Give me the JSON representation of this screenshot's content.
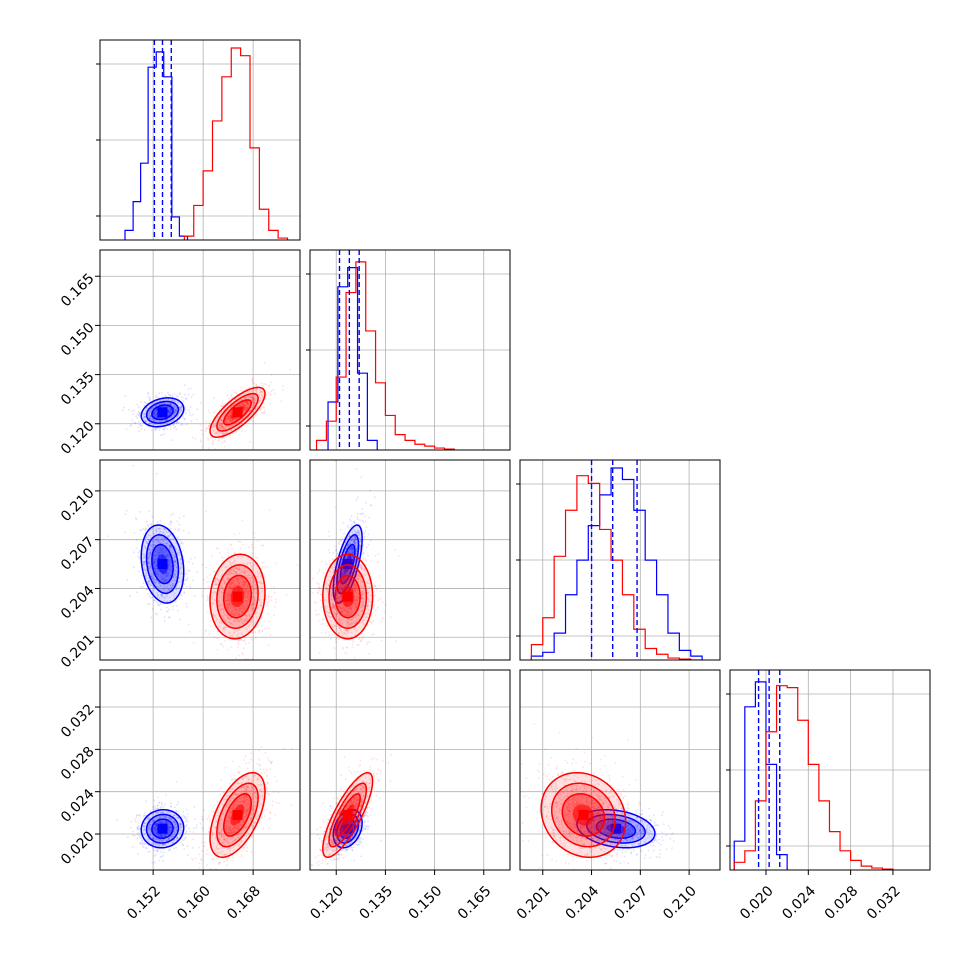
{
  "chart_data": {
    "type": "corner",
    "grid": true,
    "parameters": [
      {
        "ticks": [
          0.152,
          0.16,
          0.168
        ],
        "tick_labels": [
          "0.152",
          "0.160",
          "0.168"
        ],
        "range": [
          0.1435,
          0.1755
        ]
      },
      {
        "ticks": [
          0.12,
          0.135,
          0.15,
          0.165
        ],
        "tick_labels": [
          "0.120",
          "0.135",
          "0.150",
          "0.165"
        ],
        "range": [
          0.112,
          0.173
        ]
      },
      {
        "ticks": [
          0.201,
          0.204,
          0.207,
          0.21
        ],
        "tick_labels": [
          "0.201",
          "0.204",
          "0.207",
          "0.210"
        ],
        "range": [
          0.1996,
          0.2119
        ]
      },
      {
        "ticks": [
          0.02,
          0.024,
          0.028,
          0.032
        ],
        "tick_labels": [
          "0.020",
          "0.024",
          "0.028",
          "0.032"
        ],
        "range": [
          0.0166,
          0.0355
        ]
      }
    ],
    "series": [
      {
        "color": "#0000ff",
        "mean": [
          0.1535,
          0.1235,
          0.2055,
          0.0205
        ],
        "sd": [
          0.0017,
          0.0022,
          0.0012,
          0.0009
        ],
        "quantiles": [
          [
            0.1522,
            0.1535,
            0.1549
          ],
          [
            0.121,
            0.124,
            0.127
          ],
          [
            0.204,
            0.2053,
            0.2068
          ],
          [
            0.0193,
            0.0203,
            0.0213
          ]
        ],
        "histograms": [
          {
            "edges": [
              0.1475,
              0.1488,
              0.15,
              0.1512,
              0.1525,
              0.1537,
              0.155,
              0.1562,
              0.1575
            ],
            "counts": [
              0.05,
              0.2,
              0.4,
              0.9,
              0.98,
              0.85,
              0.12,
              0.02
            ]
          },
          {
            "edges": [
              0.1175,
              0.1205,
              0.1235,
              0.1265,
              0.1295,
              0.1325
            ],
            "counts": [
              0.25,
              0.85,
              0.95,
              0.4,
              0.05
            ]
          },
          {
            "edges": [
              0.2003,
              0.201,
              0.2017,
              0.2024,
              0.2031,
              0.2038,
              0.2045,
              0.2052,
              0.2059,
              0.2066,
              0.2073,
              0.208,
              0.2087,
              0.2094,
              0.2101,
              0.2108
            ],
            "counts": [
              0.02,
              0.04,
              0.14,
              0.34,
              0.52,
              0.7,
              0.86,
              1.0,
              0.94,
              0.78,
              0.52,
              0.34,
              0.14,
              0.05,
              0.02
            ]
          },
          {
            "edges": [
              0.017,
              0.018,
              0.019,
              0.02,
              0.021,
              0.022
            ],
            "counts": [
              0.15,
              0.85,
              0.98,
              0.55,
              0.08
            ]
          }
        ]
      },
      {
        "color": "#ff0000",
        "mean": [
          0.1655,
          0.1235,
          0.2035,
          0.0218
        ],
        "sd": [
          0.0022,
          0.0038,
          0.0013,
          0.002
        ],
        "histograms": [
          {
            "edges": [
              0.157,
              0.1585,
              0.16,
              0.1615,
              0.163,
              0.1645,
              0.166,
              0.1675,
              0.169,
              0.1705,
              0.172,
              0.1735
            ],
            "counts": [
              0.02,
              0.18,
              0.36,
              0.62,
              0.85,
              1.0,
              0.96,
              0.48,
              0.16,
              0.05,
              0.01
            ]
          },
          {
            "edges": [
              0.114,
              0.117,
              0.12,
              0.123,
              0.126,
              0.129,
              0.132,
              0.135,
              0.138,
              0.141,
              0.144,
              0.147,
              0.15,
              0.153,
              0.156
            ],
            "counts": [
              0.05,
              0.15,
              0.38,
              0.82,
              0.98,
              0.62,
              0.35,
              0.18,
              0.08,
              0.05,
              0.03,
              0.02,
              0.01,
              0.005
            ]
          },
          {
            "edges": [
              0.2003,
              0.201,
              0.2017,
              0.2024,
              0.2031,
              0.2038,
              0.2045,
              0.2052,
              0.2059,
              0.2066,
              0.2073,
              0.208,
              0.2087,
              0.2094,
              0.2101,
              0.2108
            ],
            "counts": [
              0.08,
              0.22,
              0.54,
              0.78,
              0.96,
              0.92,
              0.68,
              0.52,
              0.34,
              0.16,
              0.06,
              0.03,
              0.01,
              0.005,
              0.0
            ]
          },
          {
            "edges": [
              0.017,
              0.018,
              0.019,
              0.02,
              0.021,
              0.022,
              0.023,
              0.024,
              0.025,
              0.026,
              0.027,
              0.028,
              0.029,
              0.03,
              0.031,
              0.032
            ],
            "counts": [
              0.04,
              0.1,
              0.36,
              0.72,
              0.96,
              0.95,
              0.78,
              0.55,
              0.36,
              0.2,
              0.1,
              0.05,
              0.02,
              0.01,
              0.005
            ]
          }
        ]
      }
    ],
    "pairs": [
      {
        "row": 1,
        "col": 0,
        "blue": {
          "cov": [
            [
              0.0017,
              0.0022,
              0.25
            ]
          ]
        },
        "red": {
          "cov": [
            [
              0.0022,
              0.0038,
              0.75
            ]
          ]
        }
      },
      {
        "row": 2,
        "col": 0,
        "blue": {
          "cov": [
            [
              0.0017,
              0.0012,
              -0.2
            ]
          ]
        },
        "red": {
          "cov": [
            [
              0.0022,
              0.0013,
              0.1
            ]
          ]
        }
      },
      {
        "row": 2,
        "col": 1,
        "blue": {
          "cov": [
            [
              0.0022,
              0.0012,
              0.65
            ]
          ]
        },
        "red": {
          "cov": [
            [
              0.0038,
              0.0013,
              0.0
            ]
          ]
        }
      },
      {
        "row": 3,
        "col": 0,
        "blue": {
          "cov": [
            [
              0.0017,
              0.0009,
              0.05
            ]
          ]
        },
        "red": {
          "cov": [
            [
              0.0022,
              0.002,
              0.55
            ]
          ]
        }
      },
      {
        "row": 3,
        "col": 1,
        "blue": {
          "cov": [
            [
              0.0022,
              0.0009,
              0.3
            ]
          ]
        },
        "red": {
          "cov": [
            [
              0.0038,
              0.002,
              0.8
            ]
          ]
        }
      },
      {
        "row": 3,
        "col": 2,
        "blue": {
          "cov": [
            [
              0.0012,
              0.0009,
              -0.25
            ]
          ]
        },
        "red": {
          "cov": [
            [
              0.0013,
              0.002,
              -0.15
            ]
          ]
        }
      }
    ],
    "contour_sigmas": [
      0.5,
      1.0,
      1.5,
      2.0
    ]
  }
}
